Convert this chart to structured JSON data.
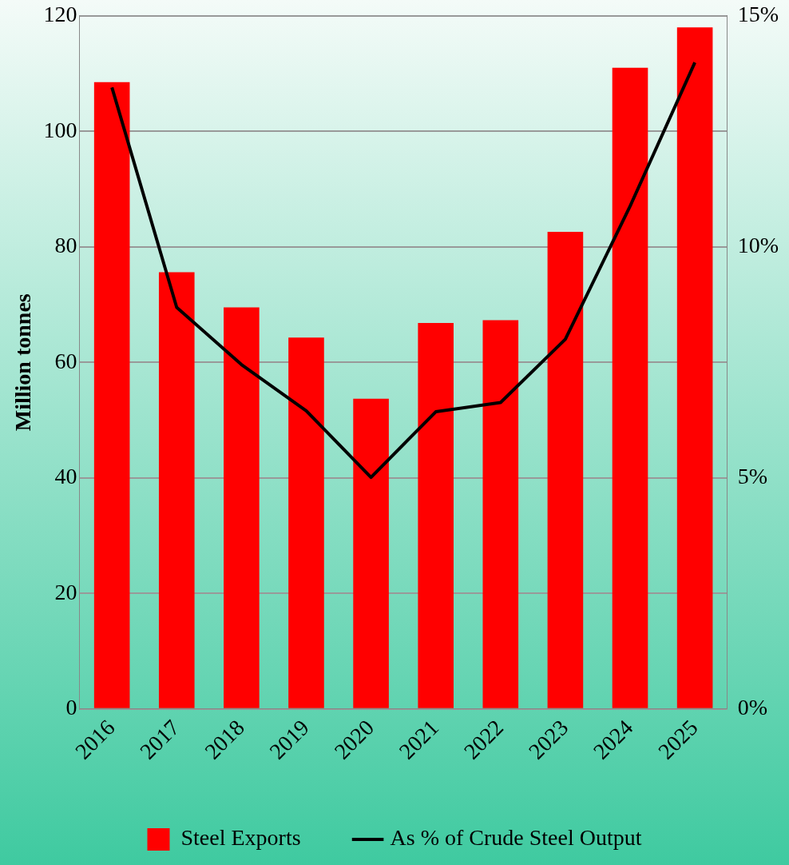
{
  "chart_data": {
    "type": "bar",
    "ylabel": "Million tonnes",
    "categories": [
      "2016",
      "2017",
      "2018",
      "2019",
      "2020",
      "2021",
      "2022",
      "2023",
      "2024",
      "2025"
    ],
    "series": [
      {
        "name": "Steel Exports",
        "color": "#ff0000",
        "values": [
          108.5,
          75.6,
          69.5,
          64.3,
          53.7,
          66.8,
          67.3,
          82.6,
          111.0,
          118.0
        ]
      },
      {
        "name": "As % of Crude Steel Output",
        "type": "line",
        "axis": "y2",
        "color": "#000000",
        "values": [
          13.45,
          8.69,
          7.45,
          6.45,
          5.01,
          6.43,
          6.63,
          8.0,
          10.88,
          13.99
        ]
      }
    ],
    "ylim": [
      0,
      120
    ],
    "yticks": [
      0,
      20,
      40,
      60,
      80,
      100,
      120
    ],
    "y2lim": [
      0,
      15
    ],
    "y2ticks": [
      {
        "value": 0,
        "label": "0%"
      },
      {
        "value": 5,
        "label": "5%"
      },
      {
        "value": 10,
        "label": "10%"
      },
      {
        "value": 15,
        "label": "15%"
      }
    ],
    "grid": "y",
    "legend": "bottom",
    "marker": "none",
    "line_style": "solid"
  }
}
